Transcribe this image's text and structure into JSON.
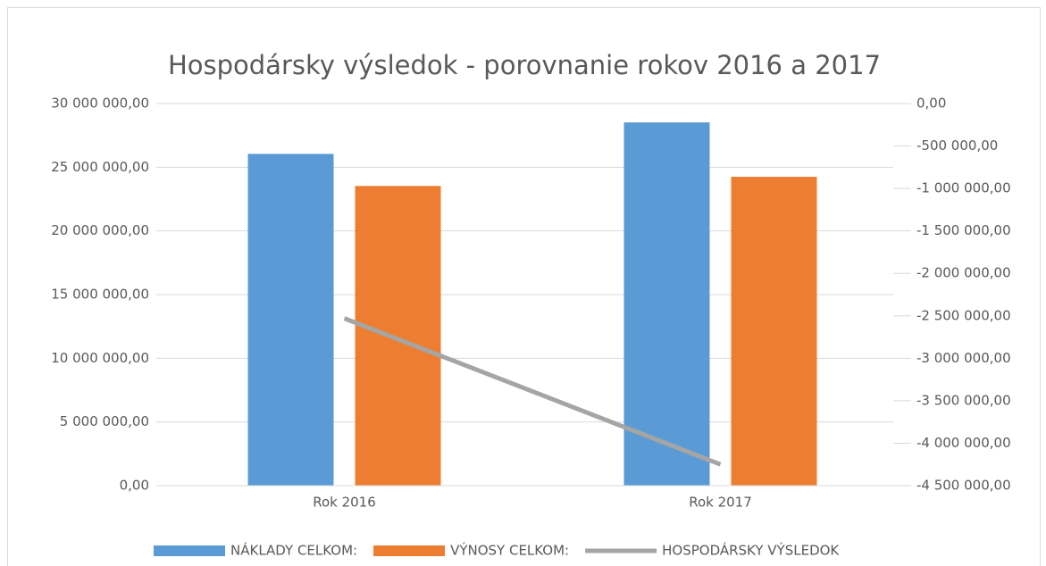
{
  "chart_data": {
    "type": "bar",
    "title": "Hospodársky výsledok - porovnanie rokov 2016 a 2017",
    "categories": [
      "Rok 2016",
      "Rok 2017"
    ],
    "series": [
      {
        "name": "NÁKLADY CELKOM:",
        "color": "#5b9bd5",
        "type": "bar",
        "values": [
          26050000,
          28520000
        ]
      },
      {
        "name": "VÝNOSY CELKOM:",
        "color": "#ed7d31",
        "type": "bar",
        "values": [
          23530000,
          24250000
        ]
      },
      {
        "name": "HOSPODÁRSKY VÝSLEDOK",
        "color": "#a5a5a5",
        "type": "line",
        "axis": "y2",
        "values": [
          -2530000,
          -4250000
        ]
      }
    ],
    "ylim": [
      0,
      30000000
    ],
    "yticks": [
      {
        "value": 0,
        "label": "0,00"
      },
      {
        "value": 5000000,
        "label": "5 000 000,00"
      },
      {
        "value": 10000000,
        "label": "10 000 000,00"
      },
      {
        "value": 15000000,
        "label": "15 000 000,00"
      },
      {
        "value": 20000000,
        "label": "20 000 000,00"
      },
      {
        "value": 25000000,
        "label": "25 000 000,00"
      },
      {
        "value": 30000000,
        "label": "30 000 000,00"
      }
    ],
    "y2lim": [
      -4500000,
      0
    ],
    "y2ticks": [
      {
        "value": -4500000,
        "label": "-4 500 000,00"
      },
      {
        "value": -4000000,
        "label": "-4 000 000,00"
      },
      {
        "value": -3500000,
        "label": "-3 500 000,00"
      },
      {
        "value": -3000000,
        "label": "-3 000 000,00"
      },
      {
        "value": -2500000,
        "label": "-2 500 000,00"
      },
      {
        "value": -2000000,
        "label": "-2 000 000,00"
      },
      {
        "value": -1500000,
        "label": "-1 500 000,00"
      },
      {
        "value": -1000000,
        "label": "-1 000 000,00"
      },
      {
        "value": -500000,
        "label": "-500 000,00"
      },
      {
        "value": 0,
        "label": "0,00"
      }
    ],
    "grid": true,
    "legend": "bottom"
  }
}
